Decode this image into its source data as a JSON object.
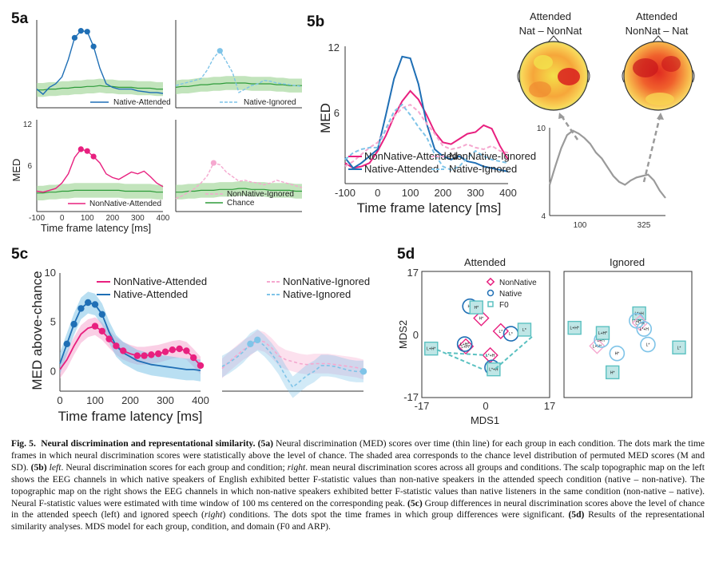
{
  "figure": {
    "panels": {
      "a": "5a",
      "b": "5b",
      "c": "5c",
      "d": "5d"
    }
  },
  "colors": {
    "native": "#1f6fb5",
    "native_light": "#7fc4e8",
    "nonnative": "#e8207f",
    "nonnative_light": "#f5a8cf",
    "chance": "#2e9b3a",
    "chance_band": "#a8d8a0",
    "gray": "#9a9a9a",
    "f0": "#5bc1c1"
  },
  "chart_data": [
    {
      "panel": "5a",
      "type": "line",
      "subplot": "top-left",
      "x": [
        -100,
        -75,
        -50,
        -25,
        0,
        25,
        50,
        75,
        100,
        125,
        150,
        175,
        200,
        225,
        250,
        275,
        300,
        325,
        350,
        375,
        400
      ],
      "series": [
        {
          "name": "Native-Attended",
          "values": [
            4.6,
            4.0,
            4.8,
            5.2,
            6.0,
            8.0,
            10.5,
            11.3,
            11.2,
            9.5,
            7.0,
            5.2,
            4.8,
            4.6,
            4.6,
            4.6,
            4.4,
            4.3,
            4.2,
            4.2,
            4.1
          ],
          "sig_points": [
            50,
            75,
            100,
            125
          ]
        },
        {
          "name": "Chance",
          "values": [
            4.5,
            4.5,
            4.6,
            4.6,
            4.7,
            4.7,
            4.8,
            4.8,
            4.9,
            4.9,
            5.0,
            4.9,
            4.9,
            4.8,
            4.8,
            4.8,
            4.7,
            4.7,
            4.7,
            4.6,
            4.6
          ]
        }
      ]
    },
    {
      "panel": "5a",
      "type": "line",
      "subplot": "top-right",
      "x": [
        -100,
        -75,
        -50,
        -25,
        0,
        25,
        50,
        75,
        100,
        125,
        150,
        175,
        200,
        225,
        250,
        275,
        300,
        325,
        350,
        375,
        400
      ],
      "series": [
        {
          "name": "Native-Ignored",
          "values": [
            5.0,
            5.2,
            5.4,
            5.6,
            5.8,
            6.8,
            8.2,
            9.0,
            7.8,
            6.5,
            4.2,
            4.6,
            5.0,
            5.2,
            5.6,
            5.5,
            5.3,
            5.2,
            5.1,
            5.0,
            4.9
          ],
          "sig_points": [
            75
          ]
        },
        {
          "name": "Chance",
          "values": [
            4.8,
            4.9,
            4.9,
            5.0,
            5.1,
            5.1,
            5.2,
            5.2,
            5.3,
            5.3,
            5.3,
            5.3,
            5.2,
            5.2,
            5.2,
            5.2,
            5.1,
            5.1,
            5.0,
            5.0,
            5.0
          ]
        }
      ]
    },
    {
      "panel": "5a",
      "type": "line",
      "subplot": "bottom-left",
      "ylabel": "MED",
      "yticks": [
        6,
        12
      ],
      "xticks": [
        -100,
        0,
        100,
        200,
        300,
        400
      ],
      "xlabel": "Time frame latency [ms]",
      "x": [
        -100,
        -75,
        -50,
        -25,
        0,
        25,
        50,
        75,
        100,
        125,
        150,
        175,
        200,
        225,
        250,
        275,
        300,
        325,
        350,
        375,
        400
      ],
      "series": [
        {
          "name": "NonNative-Attended",
          "values": [
            4.7,
            4.6,
            4.8,
            5.0,
            5.6,
            6.6,
            8.4,
            9.3,
            9.1,
            8.5,
            7.8,
            6.6,
            6.2,
            6.0,
            6.4,
            6.8,
            6.6,
            6.9,
            6.3,
            5.6,
            5.2
          ],
          "sig_points": [
            75,
            100,
            125
          ]
        },
        {
          "name": "Chance",
          "values": [
            4.5,
            4.5,
            4.6,
            4.6,
            4.7,
            4.7,
            4.8,
            4.8,
            4.8,
            4.8,
            4.8,
            4.8,
            4.8,
            4.8,
            4.7,
            4.7,
            4.7,
            4.7,
            4.7,
            4.6,
            4.6
          ]
        }
      ]
    },
    {
      "panel": "5a",
      "type": "line",
      "subplot": "bottom-right",
      "x": [
        -100,
        -75,
        -50,
        -25,
        0,
        25,
        50,
        75,
        100,
        125,
        150,
        175,
        200,
        225,
        250,
        275,
        300,
        325,
        350,
        375,
        400
      ],
      "series": [
        {
          "name": "NonNative-Ignored",
          "values": [
            3.9,
            4.2,
            4.6,
            5.0,
            5.6,
            6.4,
            7.8,
            7.6,
            6.8,
            6.3,
            5.8,
            5.9,
            5.7,
            5.6,
            5.4,
            5.6,
            5.9,
            5.7,
            5.5,
            5.3,
            5.1
          ],
          "sig_points": [
            50
          ]
        },
        {
          "name": "Chance",
          "values": [
            4.6,
            4.6,
            4.7,
            4.7,
            4.8,
            4.8,
            4.8,
            4.9,
            4.9,
            4.9,
            5.0,
            5.0,
            4.9,
            4.9,
            4.9,
            4.8,
            4.8,
            4.8,
            4.8,
            4.7,
            4.7
          ]
        }
      ]
    },
    {
      "panel": "5b",
      "type": "line",
      "ylabel": "MED",
      "xlabel": "Time frame latency [ms]",
      "ylim": [
        4,
        12
      ],
      "yticks": [
        6,
        12
      ],
      "xticks": [
        -100,
        0,
        100,
        200,
        300,
        400
      ],
      "x": [
        -100,
        -75,
        -50,
        -25,
        0,
        25,
        50,
        75,
        100,
        125,
        150,
        175,
        200,
        225,
        250,
        275,
        300,
        325,
        350,
        375,
        400
      ],
      "series": [
        {
          "name": "NonNative-Attended",
          "values": [
            5.2,
            4.9,
            5.0,
            5.2,
            5.9,
            6.8,
            7.9,
            8.8,
            9.4,
            8.9,
            8.0,
            7.0,
            6.4,
            6.3,
            6.6,
            6.9,
            7.0,
            7.4,
            7.2,
            6.2,
            5.4
          ]
        },
        {
          "name": "Native-Attended",
          "values": [
            5.5,
            4.9,
            5.2,
            5.6,
            6.0,
            8.0,
            10.1,
            11.4,
            11.3,
            9.8,
            7.5,
            6.0,
            5.6,
            5.4,
            5.6,
            5.3,
            5.2,
            5.0,
            4.9,
            4.8,
            4.7
          ]
        },
        {
          "name": "NonNative-Ignored",
          "values": [
            5.0,
            5.3,
            5.7,
            6.1,
            6.4,
            7.1,
            7.9,
            8.4,
            8.6,
            8.2,
            7.5,
            6.9,
            6.2,
            6.0,
            6.1,
            6.3,
            6.1,
            6.0,
            6.2,
            5.9,
            5.8
          ]
        },
        {
          "name": "Native-Ignored",
          "values": [
            5.4,
            5.8,
            6.0,
            6.1,
            6.1,
            7.2,
            8.2,
            8.6,
            8.0,
            7.3,
            6.7,
            5.7,
            5.0,
            4.8,
            5.0,
            5.5,
            5.9,
            5.6,
            5.4,
            5.3,
            5.2
          ]
        }
      ]
    },
    {
      "panel": "5b",
      "type": "line",
      "subplot": "topo-inset",
      "ylim": [
        4,
        10
      ],
      "yticks": [
        4,
        10
      ],
      "xticks": [
        100,
        325
      ],
      "x": [
        -100,
        -75,
        -50,
        -25,
        0,
        25,
        50,
        75,
        100,
        125,
        150,
        175,
        200,
        225,
        250,
        275,
        300,
        325,
        350,
        375,
        400
      ],
      "series": [
        {
          "name": "",
          "values": [
            6.1,
            7.4,
            8.6,
            9.5,
            9.8,
            9.6,
            9.3,
            8.9,
            8.3,
            7.9,
            7.3,
            6.7,
            6.3,
            6.1,
            6.4,
            6.6,
            6.7,
            6.8,
            6.4,
            5.7,
            5.2
          ]
        }
      ]
    },
    {
      "panel": "5c",
      "type": "line",
      "subplot": "left",
      "ylabel": "MED above-chance",
      "xlabel": "Time frame latency [ms]",
      "ylim": [
        -2,
        10
      ],
      "yticks": [
        0,
        5,
        10
      ],
      "xticks": [
        0,
        100,
        200,
        300,
        400
      ],
      "x": [
        0,
        20,
        40,
        60,
        80,
        100,
        120,
        140,
        160,
        180,
        200,
        220,
        240,
        260,
        280,
        300,
        320,
        340,
        360,
        380,
        400
      ],
      "series": [
        {
          "name": "NonNative-Attended",
          "values": [
            0.2,
            1.2,
            2.6,
            3.8,
            4.4,
            4.6,
            4.1,
            3.3,
            2.6,
            2.1,
            1.8,
            1.6,
            1.6,
            1.7,
            1.8,
            2.0,
            2.2,
            2.3,
            2.1,
            1.4,
            0.6
          ],
          "sig_points": [
            100,
            120,
            140,
            160,
            180,
            220,
            240,
            260,
            280,
            300,
            320,
            340,
            360,
            380,
            400
          ]
        },
        {
          "name": "Native-Attended",
          "values": [
            0.8,
            2.8,
            4.8,
            6.4,
            7.0,
            6.8,
            5.8,
            4.0,
            2.6,
            1.9,
            1.5,
            1.1,
            0.9,
            0.7,
            0.6,
            0.5,
            0.4,
            0.3,
            0.2,
            0.2,
            0.1
          ],
          "sig_points": [
            20,
            40,
            60,
            80,
            100,
            120
          ]
        }
      ]
    },
    {
      "panel": "5c",
      "type": "line",
      "subplot": "right",
      "x": [
        0,
        20,
        40,
        60,
        80,
        100,
        120,
        140,
        160,
        180,
        200,
        220,
        240,
        260,
        280,
        300,
        320,
        340,
        360,
        380,
        400
      ],
      "series": [
        {
          "name": "NonNative-Ignored",
          "values": [
            0.3,
            1.0,
            1.6,
            2.2,
            2.6,
            3.2,
            3.0,
            2.4,
            1.6,
            1.2,
            1.0,
            0.8,
            0.7,
            0.8,
            0.8,
            0.8,
            0.7,
            0.6,
            0.5,
            0.4,
            0.2
          ]
        },
        {
          "name": "Native-Ignored",
          "values": [
            0.5,
            0.9,
            1.4,
            2.0,
            2.8,
            3.2,
            2.6,
            1.8,
            0.8,
            -0.5,
            -1.6,
            -1.0,
            -0.4,
            0.0,
            0.6,
            0.6,
            0.5,
            0.3,
            0.1,
            0.0,
            0.0
          ],
          "sig_points": [
            80,
            100,
            400
          ]
        }
      ]
    },
    {
      "panel": "5d",
      "type": "scatter",
      "subplot": "Attended",
      "xlabel": "MDS1",
      "ylabel": "MDS2",
      "xlim": [
        -17,
        17
      ],
      "ylim": [
        -17,
        17
      ],
      "xticks": [
        -17,
        0,
        17
      ],
      "yticks": [
        17,
        0,
        -17
      ],
      "legend": [
        "NonNative",
        "Native",
        "F0"
      ],
      "points": [
        {
          "group": "NonNative",
          "label": "L+H*",
          "x": -5.3,
          "y": -3.2
        },
        {
          "group": "NonNative",
          "label": "H*",
          "x": -1.2,
          "y": 4.4
        },
        {
          "group": "NonNative",
          "label": "L*",
          "x": 4.0,
          "y": 0.9
        },
        {
          "group": "NonNative",
          "label": "L*+H",
          "x": 1.2,
          "y": -5.6
        },
        {
          "group": "Native",
          "label": "H*",
          "x": -4.2,
          "y": 7.6
        },
        {
          "group": "Native",
          "label": "L+H*",
          "x": -5.6,
          "y": -2.6
        },
        {
          "group": "Native",
          "label": "L*",
          "x": 6.7,
          "y": 0.2
        },
        {
          "group": "Native",
          "label": "L*+H",
          "x": 1.7,
          "y": -8.9
        },
        {
          "group": "F0",
          "label": "H*",
          "x": -2.5,
          "y": 7.3
        },
        {
          "group": "F0",
          "label": "L+H*",
          "x": -14.5,
          "y": -3.8
        },
        {
          "group": "F0",
          "label": "L*",
          "x": 10.3,
          "y": 1.3
        },
        {
          "group": "F0",
          "label": "L*+H",
          "x": 2.1,
          "y": -9.4
        }
      ]
    },
    {
      "panel": "5d",
      "type": "scatter",
      "subplot": "Ignored",
      "points": [
        {
          "group": "F0",
          "label": "L+H*",
          "x": -14.2,
          "y": 1.8
        },
        {
          "group": "NonNative",
          "label": "L+H*",
          "x": -8.2,
          "y": -3.1
        },
        {
          "group": "Native",
          "label": "L+H*",
          "x": -7.0,
          "y": -1.5
        },
        {
          "group": "F0",
          "label": "L+H*",
          "x": -6.7,
          "y": 0.4
        },
        {
          "group": "F0",
          "label": "L*+H",
          "x": 3.0,
          "y": 5.7
        },
        {
          "group": "Native",
          "label": "L*+H",
          "x": 2.3,
          "y": 3.7
        },
        {
          "group": "NonNative",
          "label": "L*+H",
          "x": 3.2,
          "y": 3.1
        },
        {
          "group": "Native",
          "label": "L*+H",
          "x": 4.3,
          "y": 1.5
        },
        {
          "group": "Native",
          "label": "L*",
          "x": 5.3,
          "y": -2.7
        },
        {
          "group": "F0",
          "label": "L*",
          "x": 13.6,
          "y": -3.5
        },
        {
          "group": "Native",
          "label": "H*",
          "x": -2.9,
          "y": -5.1
        },
        {
          "group": "F0",
          "label": "H*",
          "x": -4.1,
          "y": -10.2
        }
      ]
    }
  ],
  "labels": {
    "a_legend_native_attended": "Native-Attended",
    "a_legend_native_ignored": "Native-Ignored",
    "a_legend_nonnative_attended": "NonNative-Attended",
    "a_legend_nonnative_ignored": "NonNative-Ignored",
    "a_legend_chance": "Chance",
    "a_ylabel": "MED",
    "a_ytick_12": "12",
    "a_ytick_6": "6",
    "a_xlabel": "Time frame latency [ms]",
    "b_ylabel": "MED",
    "b_ytick_12": "12",
    "b_ytick_6": "6",
    "b_xlabel": "Time frame latency [ms]",
    "b_leg_nna": "NonNative-Attended",
    "b_leg_na": "Native-Attended",
    "b_leg_nni": "NonNative-Ignored",
    "b_leg_ni": "Native-Ignored",
    "b_topo1_title_1": "Attended",
    "b_topo1_title_2": "Nat – NonNat",
    "b_topo2_title_1": "Attended",
    "b_topo2_title_2": "NonNat – Nat",
    "b_inset_ytick_10": "10",
    "b_inset_ytick_4": "4",
    "b_inset_xtick_100": "100",
    "b_inset_xtick_325": "325",
    "c_ylabel": "MED above-chance",
    "c_xlabel": "Time frame latency [ms]",
    "c_leg_nna": "NonNative-Attended",
    "c_leg_na": "Native-Attended",
    "c_leg_nni": "NonNative-Ignored",
    "c_leg_ni": "Native-Ignored",
    "d_title_attended": "Attended",
    "d_title_ignored": "Ignored",
    "d_ylabel": "MDS2",
    "d_xlabel": "MDS1",
    "d_tick_17": "17",
    "d_tick_0": "0",
    "d_tick_m17": "-17",
    "d_leg_nonnative": "NonNative",
    "d_leg_native": "Native",
    "d_leg_f0": "F0"
  },
  "caption": {
    "fig": "Fig. 5.",
    "title": "Neural discrimination and representational similarity.",
    "p1_label": "(5a)",
    "p1_text": "Neural discrimination (MED) scores over time (thin line) for each group in each condition. The dots mark the time frames in which neural discrimination scores were statistically above the level of chance. The shaded area corresponds to the chance level distribution of permuted MED scores (M and SD).",
    "p2_label": "(5b)",
    "p2_left": "left",
    "p2_text1": ". Neural discrimination scores for each group and condition;",
    "p2_right": "right",
    "p2_text2": ". mean neural discrimination scores across all groups and conditions. The scalp topographic map on the left shows the EEG channels in which native speakers of English exhibited better F-statistic values than non-native speakers in the attended speech condition (native – non-native). The topographic map on the right shows the EEG channels in which non-native speakers exhibited better F-statistic values than native listeners in the same condition (non-native – native). Neural F-statistic values were estimated with time window of 100 ms centered on the corresponding peak.",
    "p3_label": "(5c)",
    "p3_text1": "Group differences in neural discrimination scores above the level of chance in the attended speech (left) and ignored speech (",
    "p3_right": "right",
    "p3_text2": ") conditions. The dots spot the time frames in which group differences were significant.",
    "p4_label": "(5d)",
    "p4_text": "Results of the representational similarity analyses. MDS model for each group, condition, and domain (F0 and ARP)."
  }
}
